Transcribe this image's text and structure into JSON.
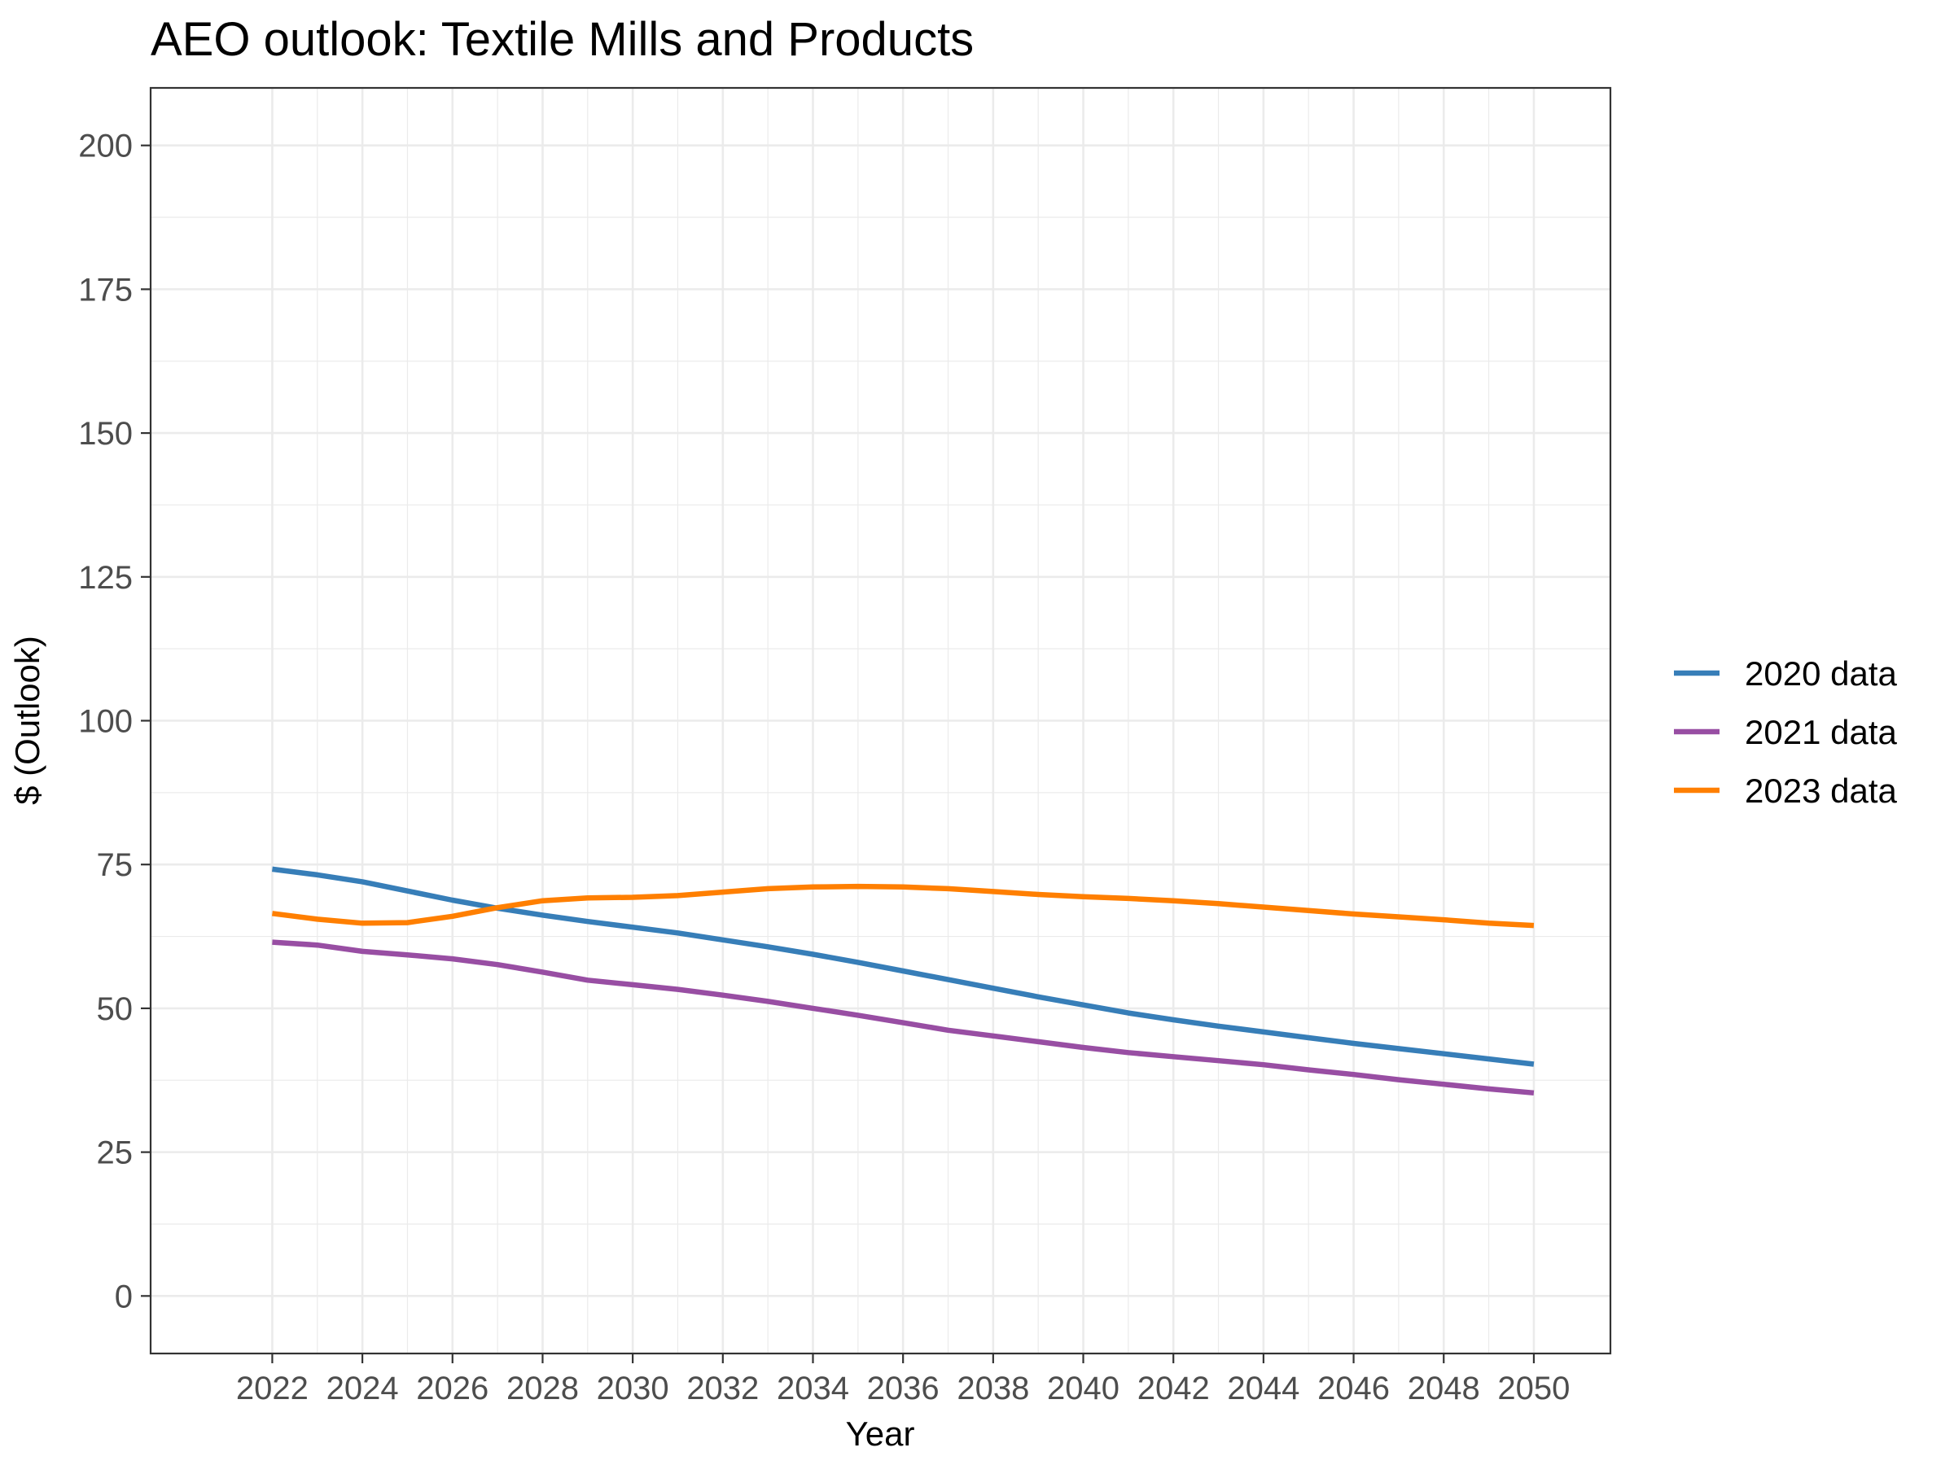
{
  "chart_data": {
    "type": "line",
    "title": "AEO outlook: Textile Mills and Products",
    "xlabel": "Year",
    "ylabel": "$ (Outlook)",
    "xlim": [
      2019.3,
      2051.7
    ],
    "ylim": [
      -10,
      210
    ],
    "x_ticks": [
      2022,
      2024,
      2026,
      2028,
      2030,
      2032,
      2034,
      2036,
      2038,
      2040,
      2042,
      2044,
      2046,
      2048,
      2050
    ],
    "y_ticks": [
      0,
      25,
      50,
      75,
      100,
      125,
      150,
      175,
      200
    ],
    "grid": true,
    "legend_position": "right",
    "x": [
      2022,
      2023,
      2024,
      2025,
      2026,
      2027,
      2028,
      2029,
      2030,
      2031,
      2032,
      2033,
      2034,
      2035,
      2036,
      2037,
      2038,
      2039,
      2040,
      2041,
      2042,
      2043,
      2044,
      2045,
      2046,
      2047,
      2048,
      2049,
      2050
    ],
    "series": [
      {
        "name": "2020 data",
        "color": "#377eb8",
        "values": [
          74.2,
          73.2,
          72.0,
          70.4,
          68.8,
          67.4,
          66.2,
          65.1,
          64.1,
          63.1,
          61.9,
          60.7,
          59.4,
          58.0,
          56.5,
          55.0,
          53.5,
          52.0,
          50.6,
          49.2,
          48.0,
          46.9,
          45.9,
          44.9,
          43.9,
          43.0,
          42.1,
          41.2,
          40.3
        ]
      },
      {
        "name": "2021 data",
        "color": "#984ea3",
        "values": [
          61.5,
          61.0,
          59.9,
          59.3,
          58.6,
          57.6,
          56.3,
          54.9,
          54.1,
          53.3,
          52.3,
          51.2,
          50.0,
          48.8,
          47.5,
          46.2,
          45.2,
          44.2,
          43.2,
          42.3,
          41.6,
          40.9,
          40.2,
          39.3,
          38.5,
          37.6,
          36.8,
          36.0,
          35.3
        ]
      },
      {
        "name": "2023 data",
        "color": "#ff7f00",
        "values": [
          66.5,
          65.5,
          64.8,
          64.9,
          66.0,
          67.5,
          68.7,
          69.2,
          69.3,
          69.6,
          70.2,
          70.8,
          71.1,
          71.2,
          71.1,
          70.8,
          70.3,
          69.8,
          69.4,
          69.1,
          68.7,
          68.2,
          67.6,
          67.0,
          66.4,
          65.9,
          65.4,
          64.8,
          64.4
        ]
      }
    ]
  }
}
